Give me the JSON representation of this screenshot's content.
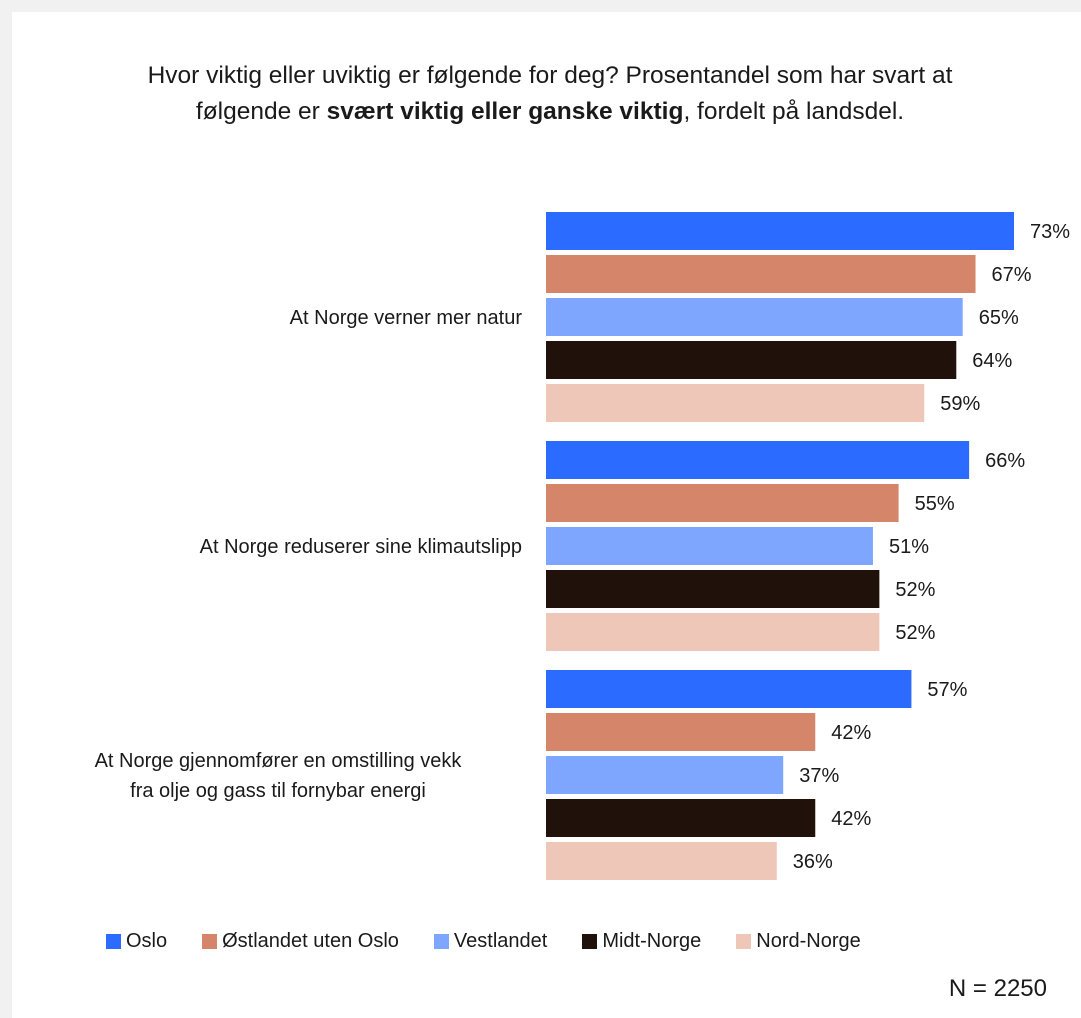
{
  "chart_data": {
    "type": "bar",
    "orientation": "horizontal",
    "title": {
      "before": "Hvor viktig eller uviktig er følgende for deg? Prosentandel som har svart at følgende er ",
      "bold": "svært viktig eller ganske viktig",
      "after": ", fordelt på landsdel."
    },
    "categories": [
      "At Norge verner mer natur",
      "At Norge reduserer sine klimautslipp",
      "At Norge gjennomfører en omstilling vekk fra olje og gass til fornybar energi"
    ],
    "series": [
      {
        "name": "Oslo",
        "color": "#2b6bff",
        "values": [
          73,
          66,
          57
        ],
        "labels": [
          "73%",
          "66%",
          "57%"
        ]
      },
      {
        "name": "Østlandet uten Oslo",
        "color": "#d4856a",
        "values": [
          67,
          55,
          42
        ],
        "labels": [
          "67%",
          "55%",
          "42%"
        ]
      },
      {
        "name": "Vestlandet",
        "color": "#7ea6ff",
        "values": [
          65,
          51,
          37
        ],
        "labels": [
          "65%",
          "51%",
          "37%"
        ]
      },
      {
        "name": "Midt-Norge",
        "color": "#20110b",
        "values": [
          64,
          52,
          42
        ],
        "labels": [
          "64%",
          "52%",
          "42%"
        ]
      },
      {
        "name": "Nord-Norge",
        "color": "#eec7b9",
        "values": [
          59,
          52,
          36
        ],
        "labels": [
          "59%",
          "52%",
          "36%"
        ]
      }
    ],
    "value_axis": {
      "min": 0,
      "max": 73,
      "grid": false
    },
    "legend_position": "bottom",
    "note": "N = 2250"
  }
}
